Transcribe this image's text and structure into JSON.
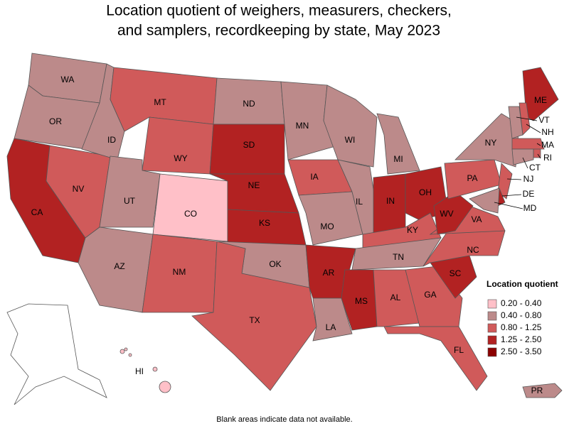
{
  "title": "Location quotient of weighers, measurers, checkers, and samplers, recordkeeping by state, May 2023",
  "states": [
    {
      "label": "WA",
      "color": "#bc8a8a"
    },
    {
      "label": "OR",
      "color": "#bc8a8a"
    },
    {
      "label": "CA",
      "color": "#b22222"
    },
    {
      "label": "NV",
      "color": "#d05a5a"
    },
    {
      "label": "ID",
      "color": "#bc8a8a"
    },
    {
      "label": "MT",
      "color": "#d05a5a"
    },
    {
      "label": "WY",
      "color": "#d05a5a"
    },
    {
      "label": "UT",
      "color": "#bc8a8a"
    },
    {
      "label": "CO",
      "color": "#ffc0c8"
    },
    {
      "label": "AZ",
      "color": "#bc8a8a"
    },
    {
      "label": "NM",
      "color": "#d05a5a"
    },
    {
      "label": "ND",
      "color": "#bc8a8a"
    },
    {
      "label": "SD",
      "color": "#b22222"
    },
    {
      "label": "NE",
      "color": "#b22222"
    },
    {
      "label": "KS",
      "color": "#b22222"
    },
    {
      "label": "OK",
      "color": "#bc8a8a"
    },
    {
      "label": "TX",
      "color": "#d05a5a"
    },
    {
      "label": "MN",
      "color": "#bc8a8a"
    },
    {
      "label": "IA",
      "color": "#d05a5a"
    },
    {
      "label": "MO",
      "color": "#bc8a8a"
    },
    {
      "label": "AR",
      "color": "#b22222"
    },
    {
      "label": "LA",
      "color": "#bc8a8a"
    },
    {
      "label": "WI",
      "color": "#bc8a8a"
    },
    {
      "label": "IL",
      "color": "#bc8a8a"
    },
    {
      "label": "MI",
      "color": "#bc8a8a"
    },
    {
      "label": "IN",
      "color": "#b22222"
    },
    {
      "label": "OH",
      "color": "#b22222"
    },
    {
      "label": "KY",
      "color": "#d05a5a"
    },
    {
      "label": "TN",
      "color": "#bc8a8a"
    },
    {
      "label": "MS",
      "color": "#b22222"
    },
    {
      "label": "AL",
      "color": "#d05a5a"
    },
    {
      "label": "GA",
      "color": "#d05a5a"
    },
    {
      "label": "FL",
      "color": "#d05a5a"
    },
    {
      "label": "SC",
      "color": "#b22222"
    },
    {
      "label": "NC",
      "color": "#d05a5a"
    },
    {
      "label": "VA",
      "color": "#d05a5a"
    },
    {
      "label": "WV",
      "color": "#b22222"
    },
    {
      "label": "PA",
      "color": "#d05a5a"
    },
    {
      "label": "NY",
      "color": "#bc8a8a"
    },
    {
      "label": "ME",
      "color": "#b22222"
    },
    {
      "label": "NH",
      "color": "#d05a5a"
    },
    {
      "label": "VT",
      "color": "#bc8a8a"
    },
    {
      "label": "MA",
      "color": "#d05a5a"
    },
    {
      "label": "RI",
      "color": "#d05a5a"
    },
    {
      "label": "CT",
      "color": "#bc8a8a"
    },
    {
      "label": "NJ",
      "color": "#d05a5a"
    },
    {
      "label": "DE",
      "color": "#b22222"
    },
    {
      "label": "MD",
      "color": "#bc8a8a"
    },
    {
      "label": "HI",
      "color": "#ffc0c8"
    },
    {
      "label": "PR",
      "color": "#bc8a8a"
    }
  ],
  "legend": {
    "title": "Location quotient",
    "items": [
      {
        "label": "0.20 - 0.40",
        "color": "#ffc0c8"
      },
      {
        "label": "0.40 - 0.80",
        "color": "#bc8a8a"
      },
      {
        "label": "0.80 - 1.25",
        "color": "#d05a5a"
      },
      {
        "label": "1.25 - 2.50",
        "color": "#b22222"
      },
      {
        "label": "2.50 - 3.50",
        "color": "#8b0000"
      }
    ]
  },
  "footnote": "Blank areas indicate data not available."
}
